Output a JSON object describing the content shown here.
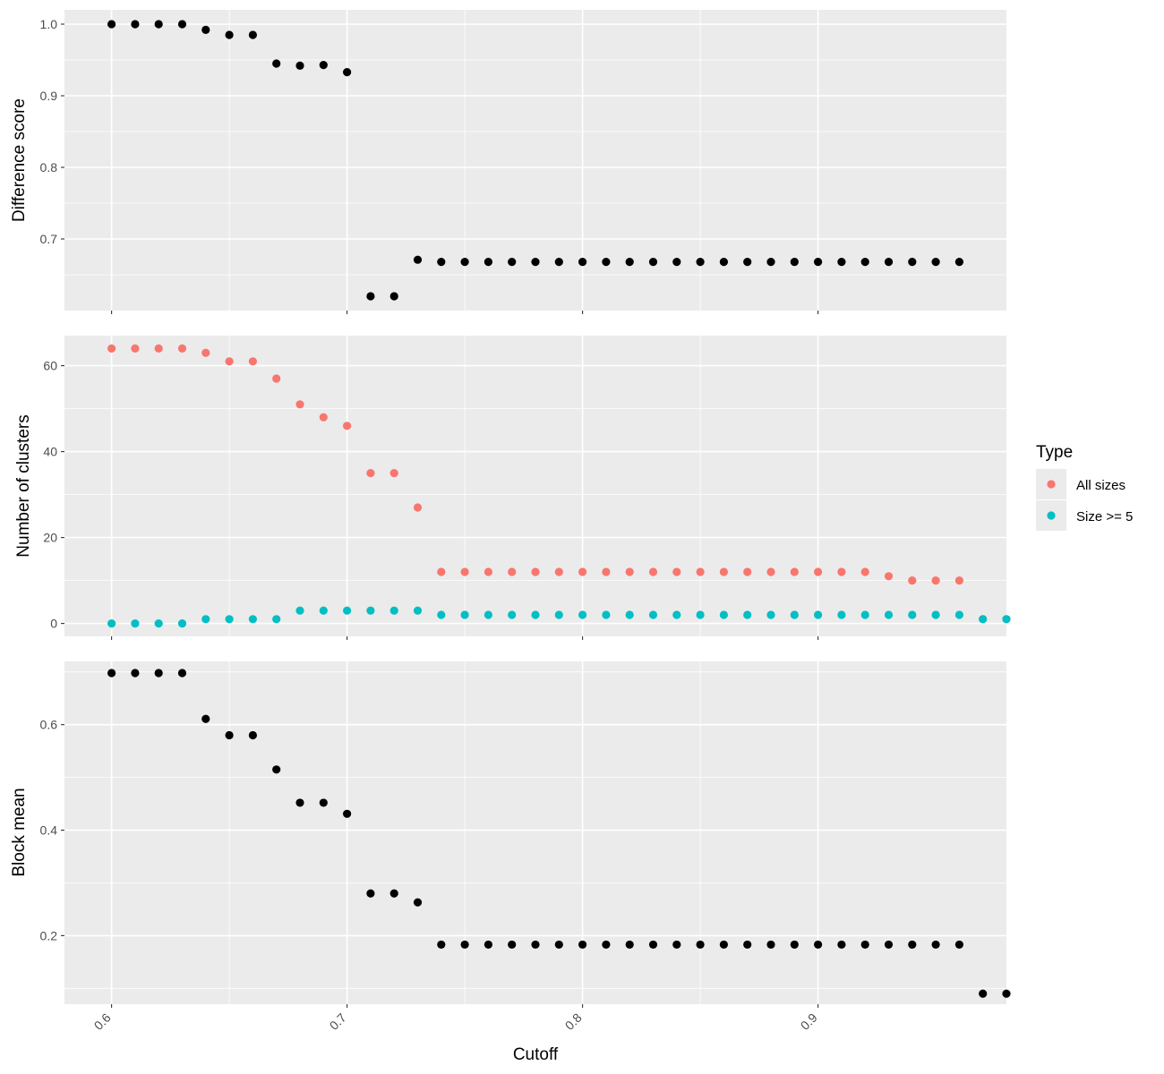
{
  "chart_data": [
    {
      "type": "scatter",
      "ylabel": "Difference score",
      "ylim": [
        0.6,
        1.02
      ],
      "y_ticks": [
        0.7,
        0.8,
        0.9,
        1.0
      ],
      "y_tick_labels": [
        "0.7",
        "0.8",
        "0.9",
        "1.0"
      ],
      "grid": true,
      "series": [
        {
          "color": "#000000",
          "x": [
            0.6,
            0.61,
            0.62,
            0.63,
            0.64,
            0.65,
            0.66,
            0.67,
            0.68,
            0.69,
            0.7,
            0.71,
            0.72,
            0.73,
            0.74,
            0.75,
            0.76,
            0.77,
            0.78,
            0.79,
            0.8,
            0.81,
            0.82,
            0.83,
            0.84,
            0.85,
            0.86,
            0.87,
            0.88,
            0.89,
            0.9,
            0.91,
            0.92,
            0.93,
            0.94,
            0.95,
            0.96
          ],
          "y": [
            1.0,
            1.0,
            1.0,
            1.0,
            0.992,
            0.985,
            0.985,
            0.945,
            0.942,
            0.943,
            0.933,
            0.62,
            0.62,
            0.671,
            0.668,
            0.668,
            0.668,
            0.668,
            0.668,
            0.668,
            0.668,
            0.668,
            0.668,
            0.668,
            0.668,
            0.668,
            0.668,
            0.668,
            0.668,
            0.668,
            0.668,
            0.668,
            0.668,
            0.668,
            0.668,
            0.668,
            0.668
          ]
        }
      ]
    },
    {
      "type": "scatter",
      "ylabel": "Number of clusters",
      "ylim": [
        -3,
        67
      ],
      "y_ticks": [
        0,
        20,
        40,
        60
      ],
      "y_tick_labels": [
        "0",
        "20",
        "40",
        "60"
      ],
      "grid": true,
      "legend": {
        "title": "Type",
        "position": "right"
      },
      "series": [
        {
          "name": "All sizes",
          "color": "#f8766d",
          "x": [
            0.6,
            0.61,
            0.62,
            0.63,
            0.64,
            0.65,
            0.66,
            0.67,
            0.68,
            0.69,
            0.7,
            0.71,
            0.72,
            0.73,
            0.74,
            0.75,
            0.76,
            0.77,
            0.78,
            0.79,
            0.8,
            0.81,
            0.82,
            0.83,
            0.84,
            0.85,
            0.86,
            0.87,
            0.88,
            0.89,
            0.9,
            0.91,
            0.92,
            0.93,
            0.94,
            0.95,
            0.96,
            0.97,
            0.98
          ],
          "y": [
            64,
            64,
            64,
            64,
            63,
            61,
            61,
            57,
            51,
            48,
            46,
            35,
            35,
            27,
            12,
            12,
            12,
            12,
            12,
            12,
            12,
            12,
            12,
            12,
            12,
            12,
            12,
            12,
            12,
            12,
            12,
            12,
            12,
            11,
            10,
            10,
            10,
            1,
            1
          ]
        },
        {
          "name": "Size >= 5",
          "color": "#00bfc4",
          "x": [
            0.6,
            0.61,
            0.62,
            0.63,
            0.64,
            0.65,
            0.66,
            0.67,
            0.68,
            0.69,
            0.7,
            0.71,
            0.72,
            0.73,
            0.74,
            0.75,
            0.76,
            0.77,
            0.78,
            0.79,
            0.8,
            0.81,
            0.82,
            0.83,
            0.84,
            0.85,
            0.86,
            0.87,
            0.88,
            0.89,
            0.9,
            0.91,
            0.92,
            0.93,
            0.94,
            0.95,
            0.96,
            0.97,
            0.98
          ],
          "y": [
            0,
            0,
            0,
            0,
            1,
            1,
            1,
            1,
            3,
            3,
            3,
            3,
            3,
            3,
            2,
            2,
            2,
            2,
            2,
            2,
            2,
            2,
            2,
            2,
            2,
            2,
            2,
            2,
            2,
            2,
            2,
            2,
            2,
            2,
            2,
            2,
            2,
            1,
            1
          ]
        }
      ]
    },
    {
      "type": "scatter",
      "ylabel": "Block mean",
      "xlabel": "Cutoff",
      "ylim": [
        0.07,
        0.72
      ],
      "y_ticks": [
        0.2,
        0.4,
        0.6
      ],
      "y_tick_labels": [
        "0.2",
        "0.4",
        "0.6"
      ],
      "grid": true,
      "series": [
        {
          "color": "#000000",
          "x": [
            0.6,
            0.61,
            0.62,
            0.63,
            0.64,
            0.65,
            0.66,
            0.67,
            0.68,
            0.69,
            0.7,
            0.71,
            0.72,
            0.73,
            0.74,
            0.75,
            0.76,
            0.77,
            0.78,
            0.79,
            0.8,
            0.81,
            0.82,
            0.83,
            0.84,
            0.85,
            0.86,
            0.87,
            0.88,
            0.89,
            0.9,
            0.91,
            0.92,
            0.93,
            0.94,
            0.95,
            0.96,
            0.97,
            0.98
          ],
          "y": [
            0.698,
            0.698,
            0.698,
            0.698,
            0.611,
            0.58,
            0.58,
            0.515,
            0.452,
            0.452,
            0.431,
            0.28,
            0.28,
            0.263,
            0.183,
            0.183,
            0.183,
            0.183,
            0.183,
            0.183,
            0.183,
            0.183,
            0.183,
            0.183,
            0.183,
            0.183,
            0.183,
            0.183,
            0.183,
            0.183,
            0.183,
            0.183,
            0.183,
            0.183,
            0.183,
            0.183,
            0.183,
            0.09,
            0.09
          ]
        }
      ]
    }
  ],
  "x_axis": {
    "xlim": [
      0.58,
      0.98
    ],
    "ticks": [
      0.6,
      0.7,
      0.8,
      0.9
    ],
    "tick_labels": [
      "0.6",
      "0.7",
      "0.8",
      "0.9"
    ],
    "label": "Cutoff"
  }
}
